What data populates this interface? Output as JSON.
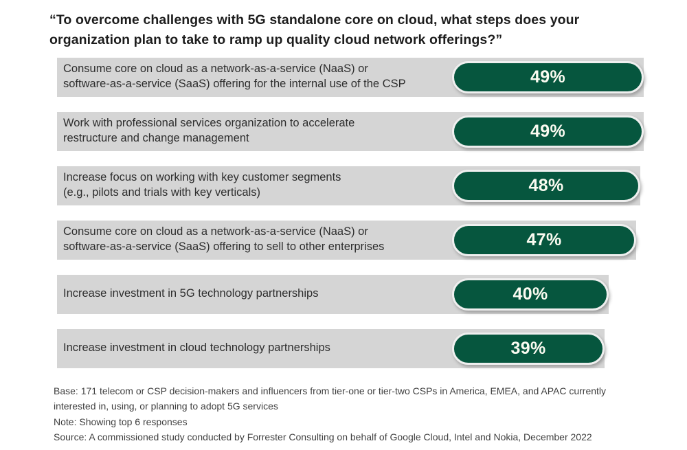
{
  "title": "“To overcome challenges with 5G standalone core on cloud, what steps does your\norganization plan to take to ramp up quality cloud network offerings?”",
  "chart_data": {
    "type": "bar",
    "orientation": "horizontal",
    "unit": "percent",
    "title": "“To overcome challenges with 5G standalone core on cloud, what steps does your organization plan to take to ramp up quality cloud network offerings?”",
    "categories": [
      "Consume core on cloud as a network-as-a-service (NaaS) or\nsoftware-as-a-service (SaaS) offering for the internal use of the CSP",
      "Work with professional services organization to accelerate\nrestructure and change management",
      "Increase focus on working with key customer segments\n(e.g., pilots and trials with key verticals)",
      "Consume core on cloud as a network-as-a-service (NaaS) or\nsoftware-as-a-service (SaaS) offering to sell to other enterprises",
      "Increase investment in 5G technology partnerships",
      "Increase investment in cloud technology partnerships"
    ],
    "values": [
      49,
      49,
      48,
      47,
      40,
      39
    ],
    "display_values": [
      "49%",
      "49%",
      "48%",
      "47%",
      "40%",
      "39%"
    ],
    "xlim": [
      0,
      49
    ],
    "bar_color": "#06563e",
    "label_box_color": "#d5d5d5",
    "value_text_color": "#fbfbf1",
    "legend": "none",
    "grid": "off"
  },
  "footnotes": {
    "base": "Base: 171 telecom or CSP decision-makers and influencers from tier-one or tier-two CSPs in America, EMEA, and APAC currently\ninterested in, using, or planning to adopt 5G services",
    "note": "Note: Showing top 6 responses",
    "source": "Source: A commissioned study conducted by Forrester Consulting on behalf of Google Cloud, Intel and Nokia, December 2022"
  }
}
